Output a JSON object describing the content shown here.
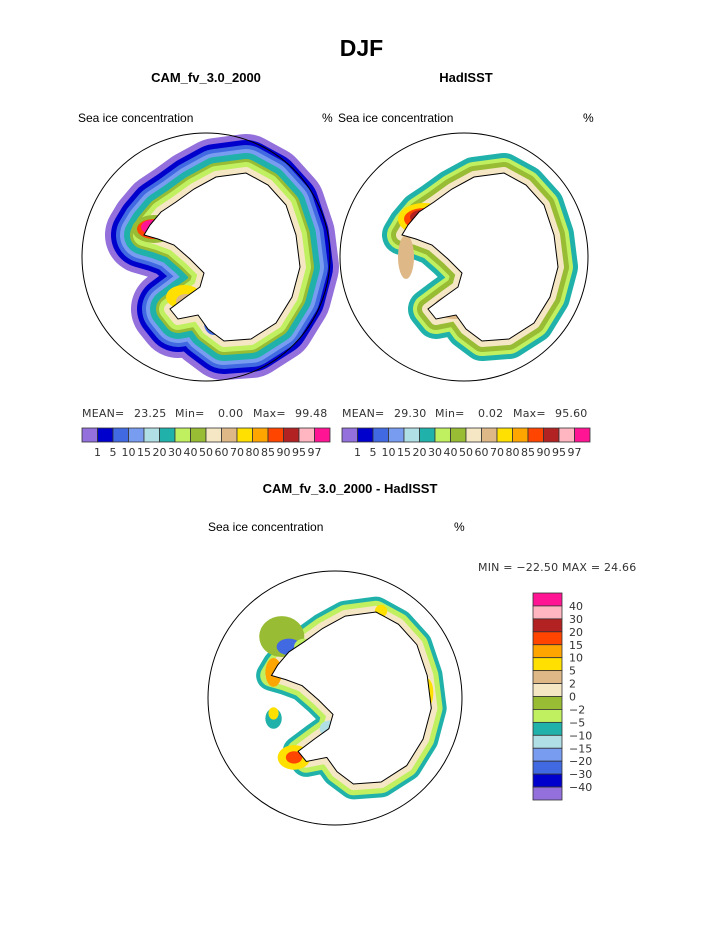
{
  "title": "DJF",
  "panels": [
    {
      "title": "CAM_fv_3.0_2000",
      "left_label": "Sea ice concentration",
      "right_label": "%",
      "stats": {
        "mean_label": "MEAN=",
        "mean": "23.25",
        "min_label": "Min=",
        "min": "0.00",
        "max_label": "Max=",
        "max": "99.48"
      }
    },
    {
      "title": "HadISST",
      "left_label": "Sea ice concentration",
      "right_label": "%",
      "stats": {
        "mean_label": "MEAN=",
        "mean": "29.30",
        "min_label": "Min=",
        "min": "0.02",
        "max_label": "Max=",
        "max": "95.60"
      }
    }
  ],
  "diff_panel": {
    "title": "CAM_fv_3.0_2000 - HadISST",
    "left_label": "Sea ice concentration",
    "right_label": "%",
    "stats_text": "MIN = −22.50  MAX =   24.66"
  },
  "colorbar": {
    "labels": [
      "1",
      "5",
      "10",
      "15",
      "20",
      "30",
      "40",
      "50",
      "60",
      "70",
      "80",
      "85",
      "90",
      "95",
      "97"
    ],
    "colors": [
      "#9370db",
      "#0000cd",
      "#4169e1",
      "#789cf0",
      "#b0e0e6",
      "#20b2aa",
      "#c0f060",
      "#98bc34",
      "#f5e6c4",
      "#deb887",
      "#ffe000",
      "#ffa500",
      "#ff4500",
      "#b22222",
      "#ffb6c1",
      "#ff1493"
    ]
  },
  "diff_colorbar": {
    "labels": [
      "40",
      "30",
      "20",
      "15",
      "10",
      "5",
      "2",
      "0",
      "−2",
      "−5",
      "−10",
      "−15",
      "−20",
      "−30",
      "−40"
    ],
    "colors": [
      "#ff1493",
      "#ffb6c1",
      "#b22222",
      "#ff4500",
      "#ffa500",
      "#ffe000",
      "#deb887",
      "#f5e6c4",
      "#98bc34",
      "#c0f060",
      "#20b2aa",
      "#b0e0e6",
      "#789cf0",
      "#4169e1",
      "#0000cd",
      "#9370db"
    ]
  }
}
